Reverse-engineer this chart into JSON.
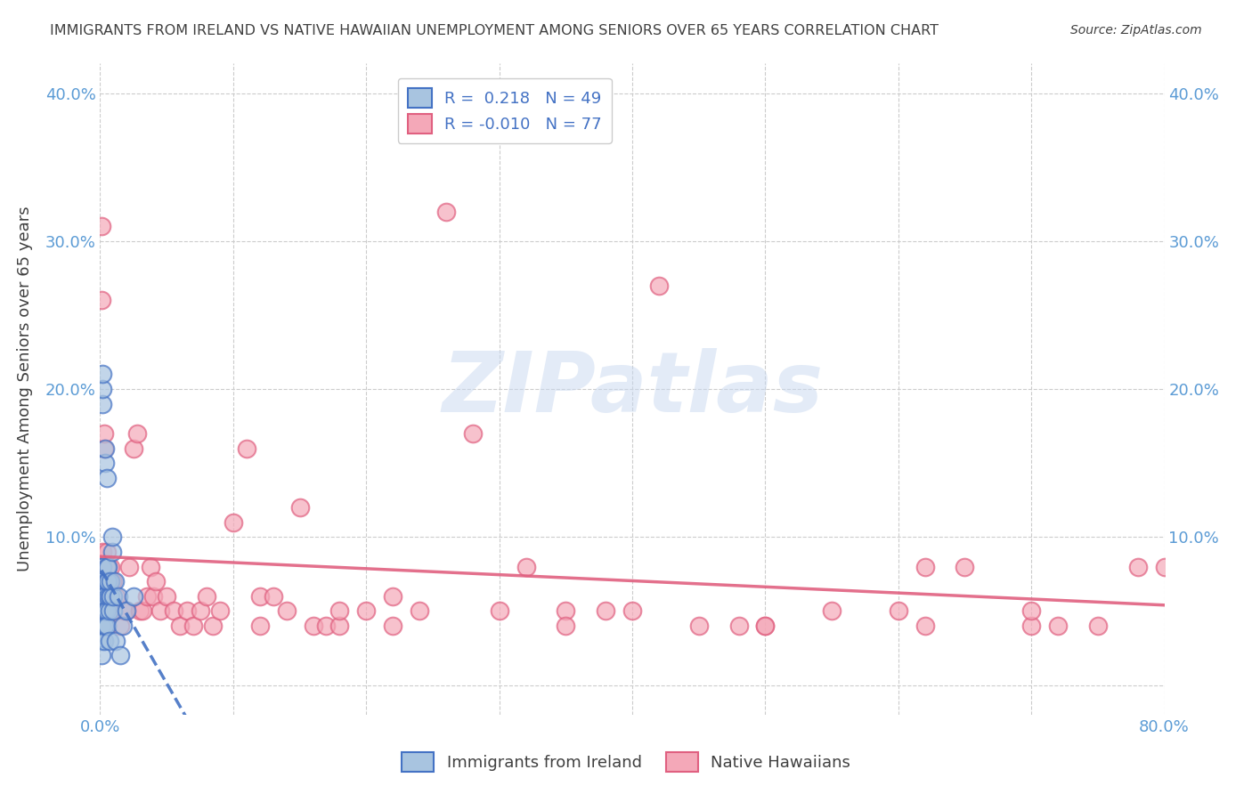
{
  "title": "IMMIGRANTS FROM IRELAND VS NATIVE HAWAIIAN UNEMPLOYMENT AMONG SENIORS OVER 65 YEARS CORRELATION CHART",
  "source": "Source: ZipAtlas.com",
  "ylabel": "Unemployment Among Seniors over 65 years",
  "xlabel": "",
  "watermark": "ZIPatlas",
  "xlim": [
    0,
    0.8
  ],
  "ylim": [
    -0.02,
    0.42
  ],
  "xticks": [
    0.0,
    0.1,
    0.2,
    0.3,
    0.4,
    0.5,
    0.6,
    0.7,
    0.8
  ],
  "yticks": [
    0.0,
    0.1,
    0.2,
    0.3,
    0.4
  ],
  "xtick_labels": [
    "0.0%",
    "",
    "",
    "",
    "",
    "",
    "",
    "",
    "80.0%"
  ],
  "ytick_labels": [
    "",
    "10.0%",
    "20.0%",
    "30.0%",
    "40.0%"
  ],
  "legend_R1": "R =  0.218",
  "legend_N1": "N = 49",
  "legend_R2": "R = -0.010",
  "legend_N2": "N = 77",
  "color_ireland": "#a8c4e0",
  "color_hawaii": "#f4a8b8",
  "color_ireland_line": "#4472c4",
  "color_hawaii_line": "#e06080",
  "color_title": "#404040",
  "color_ticks": "#6baed6",
  "background": "#ffffff",
  "ireland_x": [
    0.001,
    0.001,
    0.001,
    0.001,
    0.001,
    0.001,
    0.001,
    0.001,
    0.001,
    0.002,
    0.002,
    0.002,
    0.002,
    0.002,
    0.002,
    0.002,
    0.003,
    0.003,
    0.003,
    0.003,
    0.003,
    0.004,
    0.004,
    0.004,
    0.004,
    0.005,
    0.005,
    0.005,
    0.005,
    0.005,
    0.006,
    0.006,
    0.006,
    0.007,
    0.007,
    0.007,
    0.008,
    0.008,
    0.009,
    0.009,
    0.01,
    0.01,
    0.011,
    0.012,
    0.014,
    0.015,
    0.017,
    0.02,
    0.025
  ],
  "ireland_y": [
    0.05,
    0.03,
    0.04,
    0.06,
    0.02,
    0.05,
    0.07,
    0.08,
    0.04,
    0.05,
    0.06,
    0.08,
    0.19,
    0.2,
    0.21,
    0.07,
    0.06,
    0.04,
    0.05,
    0.06,
    0.03,
    0.04,
    0.05,
    0.15,
    0.16,
    0.07,
    0.08,
    0.05,
    0.04,
    0.14,
    0.06,
    0.07,
    0.08,
    0.06,
    0.05,
    0.03,
    0.06,
    0.07,
    0.09,
    0.1,
    0.05,
    0.06,
    0.07,
    0.03,
    0.06,
    0.02,
    0.04,
    0.05,
    0.06
  ],
  "hawaii_x": [
    0.001,
    0.001,
    0.002,
    0.002,
    0.003,
    0.003,
    0.004,
    0.004,
    0.005,
    0.005,
    0.006,
    0.007,
    0.008,
    0.009,
    0.01,
    0.012,
    0.015,
    0.018,
    0.02,
    0.022,
    0.025,
    0.028,
    0.03,
    0.032,
    0.035,
    0.038,
    0.04,
    0.042,
    0.045,
    0.05,
    0.055,
    0.06,
    0.065,
    0.07,
    0.075,
    0.08,
    0.085,
    0.09,
    0.1,
    0.11,
    0.12,
    0.13,
    0.14,
    0.15,
    0.16,
    0.17,
    0.18,
    0.2,
    0.22,
    0.24,
    0.26,
    0.28,
    0.3,
    0.32,
    0.35,
    0.38,
    0.4,
    0.42,
    0.45,
    0.48,
    0.5,
    0.55,
    0.6,
    0.62,
    0.65,
    0.7,
    0.72,
    0.75,
    0.78,
    0.8,
    0.12,
    0.18,
    0.22,
    0.35,
    0.5,
    0.62,
    0.7
  ],
  "hawaii_y": [
    0.31,
    0.26,
    0.08,
    0.09,
    0.16,
    0.17,
    0.06,
    0.05,
    0.09,
    0.08,
    0.08,
    0.07,
    0.08,
    0.07,
    0.07,
    0.06,
    0.04,
    0.05,
    0.05,
    0.08,
    0.16,
    0.17,
    0.05,
    0.05,
    0.06,
    0.08,
    0.06,
    0.07,
    0.05,
    0.06,
    0.05,
    0.04,
    0.05,
    0.04,
    0.05,
    0.06,
    0.04,
    0.05,
    0.11,
    0.16,
    0.06,
    0.06,
    0.05,
    0.12,
    0.04,
    0.04,
    0.04,
    0.05,
    0.04,
    0.05,
    0.32,
    0.17,
    0.05,
    0.08,
    0.05,
    0.05,
    0.05,
    0.27,
    0.04,
    0.04,
    0.04,
    0.05,
    0.05,
    0.04,
    0.08,
    0.04,
    0.04,
    0.04,
    0.08,
    0.08,
    0.04,
    0.05,
    0.06,
    0.04,
    0.04,
    0.08,
    0.05
  ]
}
